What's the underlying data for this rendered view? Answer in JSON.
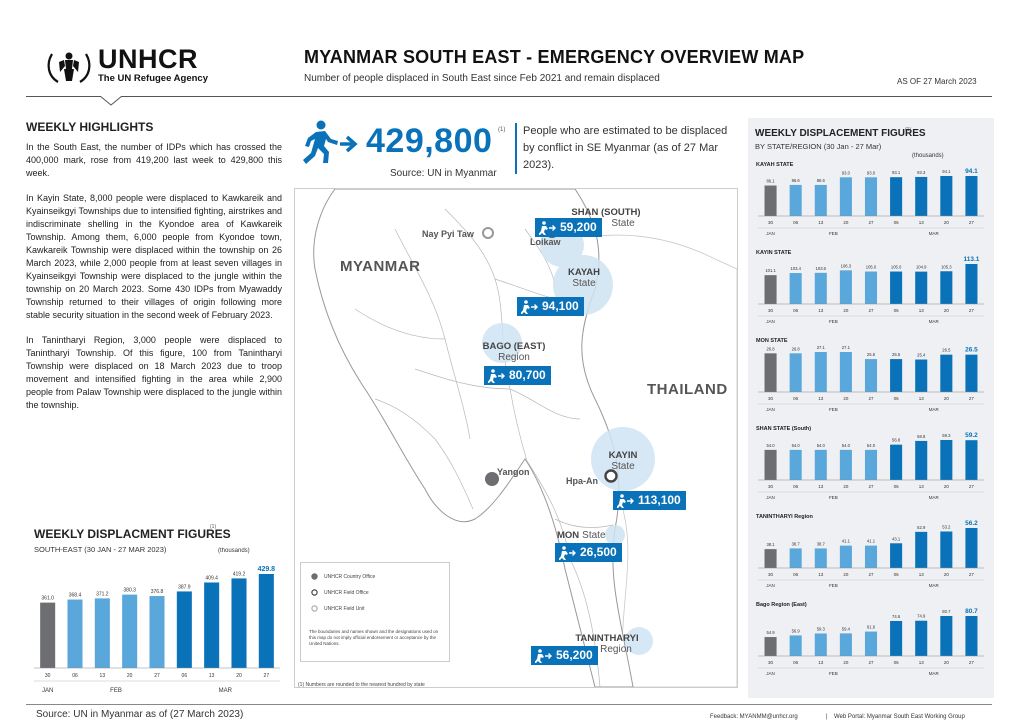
{
  "header": {
    "logo_text": "UNHCR",
    "logo_sub": "The UN Refugee Agency",
    "title": "MYANMAR SOUTH EAST - EMERGENCY OVERVIEW MAP",
    "subtitle": "Number of people displaced in South East since Feb 2021 and remain displaced",
    "as_of": "AS OF 27 March 2023"
  },
  "highlights": {
    "title": "WEEKLY HIGHLIGHTS",
    "paragraphs": [
      "In the South East, the number of IDPs which has crossed the 400,000 mark, rose from 419,200 last week to 429,800 this week.",
      "In Kayin State, 8,000 people were displaced to Kawkareik and Kyainseikgyi Townships due to intensified fighting, airstrikes and indiscriminate shelling in the Kyondoe area of Kawkareik Township. Among them, 6,000 people from Kyondoe town, Kawkareik Township were displaced within the township on 26 March 2023, while 2,000 people from at least seven villages in Kyainseikgyi Township were displaced to the jungle within the township on 20 March 2023. Some 430 IDPs from Myawaddy Township returned to their villages of origin following more stable security situation in the second week of February 2023.",
      "In Tanintharyi Region, 3,000 people were displaced to Tanintharyi Township. Of this figure, 100 from Tanintharyi Township were displaced on 18 March 2023 due to troop movement and intensified fighting in the area while 2,900 people from Palaw Township were displaced to the jungle within the township."
    ]
  },
  "total": {
    "value": "429,800",
    "footnote": "(1)",
    "source": "Source: UN in Myanmar",
    "description": "People who are estimated to be displaced by conflict in SE Myanmar (as of 27 Mar 2023)."
  },
  "map": {
    "countries": [
      "MYANMAR",
      "THAILAND"
    ],
    "places": [
      "Nay Pyi Taw",
      "Loikaw",
      "Yangon",
      "Hpa-An"
    ],
    "regions": [
      {
        "name": "SHAN (SOUTH)",
        "sub": "State",
        "value": "59,200"
      },
      {
        "name": "KAYAH",
        "sub": "State",
        "value": "94,100"
      },
      {
        "name": "BAGO (EAST)",
        "sub": "Region",
        "value": "80,700"
      },
      {
        "name": "KAYIN",
        "sub": "State",
        "value": "113,100"
      },
      {
        "name": "MON",
        "sub": "State",
        "value": "26,500"
      },
      {
        "name": "TANINTHARYI",
        "sub": "Region",
        "value": "56,200"
      }
    ],
    "legend": [
      "UNHCR Country Office",
      "UNHCR Field Office",
      "UNHCR Field Unit"
    ],
    "legend_note": "The boundaries and names shown and the designations used on this map do not imply official endorsement or acceptance by the United Nations.",
    "rounding_note": "(1) Numbers are rounded to the nearest hundred by state"
  },
  "colors": {
    "accent": "#0a72b8",
    "dark_bar": "#6d6e71",
    "light_bar": "#5aa7dc",
    "bubble": "#cfe3f3"
  },
  "chart_data": [
    {
      "type": "bar",
      "title": "WEEKLY DISPLACMENT FIGURES",
      "subtitle": "SOUTH-EAST (30 JAN - 27 MAR 2023)",
      "unit": "(thousands)",
      "categories": [
        "30",
        "06",
        "13",
        "20",
        "27",
        "06",
        "13",
        "20",
        "27"
      ],
      "months": [
        "JAN",
        "FEB",
        "MAR"
      ],
      "values": [
        361.0,
        368.4,
        371.2,
        380.3,
        376.8,
        387.9,
        409.4,
        419.2,
        429.8
      ]
    },
    {
      "type": "bar",
      "title": "WEEKLY DISPLACEMENT FIGURES",
      "subtitle": "BY STATE/REGION (30 Jan - 27 Mar)",
      "unit": "(thousands)",
      "categories": [
        "30",
        "06",
        "13",
        "20",
        "27",
        "06",
        "13",
        "20",
        "27"
      ],
      "months": [
        "JAN",
        "FEB",
        "MAR"
      ],
      "panels": [
        {
          "name": "KAYAH STATE",
          "values": [
            86.1,
            86.6,
            86.6,
            93.0,
            93.0,
            93.1,
            93.3,
            94.1,
            94.1
          ]
        },
        {
          "name": "KAYIN STATE",
          "values": [
            101.1,
            103.4,
            103.6,
            106.3,
            105.0,
            105.0,
            104.9,
            105.3,
            113.1
          ]
        },
        {
          "name": "MON STATE",
          "values": [
            26.8,
            26.8,
            27.1,
            27.1,
            25.5,
            25.5,
            25.4,
            26.5,
            26.5
          ]
        },
        {
          "name": "SHAN STATE (South)",
          "values": [
            54.0,
            54.0,
            54.0,
            54.0,
            54.0,
            56.8,
            58.8,
            59.3,
            59.2
          ]
        },
        {
          "name": "TANINTHARYI Region",
          "values": [
            38.1,
            38.7,
            38.7,
            41.1,
            41.1,
            43.1,
            52.9,
            53.2,
            56.2
          ]
        },
        {
          "name": "Bago Region (East)",
          "values": [
            54.9,
            56.9,
            59.3,
            59.4,
            61.6,
            74.6,
            74.9,
            80.7,
            80.7
          ]
        }
      ]
    }
  ],
  "footer": {
    "source": "Source: UN in Myanmar as of (27 March 2023)",
    "feedback": "Feedback: MYANMM@unhcr.org",
    "separator": "|",
    "portal": "Web Portal: Myanmar South East Working Group"
  }
}
